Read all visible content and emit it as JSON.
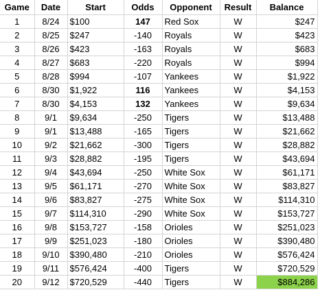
{
  "headers": [
    "Game",
    "Date",
    "Start",
    "Odds",
    "Opponent",
    "Result",
    "Balance"
  ],
  "rows": [
    {
      "game": "1",
      "date": "8/24",
      "start": "$100",
      "odds": "147",
      "odds_bold": true,
      "opponent": "Red Sox",
      "result": "W",
      "balance": "$247"
    },
    {
      "game": "2",
      "date": "8/25",
      "start": "$247",
      "odds": "-140",
      "odds_bold": false,
      "opponent": "Royals",
      "result": "W",
      "balance": "$423"
    },
    {
      "game": "3",
      "date": "8/26",
      "start": "$423",
      "odds": "-163",
      "odds_bold": false,
      "opponent": "Royals",
      "result": "W",
      "balance": "$683"
    },
    {
      "game": "4",
      "date": "8/27",
      "start": "$683",
      "odds": "-220",
      "odds_bold": false,
      "opponent": "Royals",
      "result": "W",
      "balance": "$994"
    },
    {
      "game": "5",
      "date": "8/28",
      "start": "$994",
      "odds": "-107",
      "odds_bold": false,
      "opponent": "Yankees",
      "result": "W",
      "balance": "$1,922"
    },
    {
      "game": "6",
      "date": "8/30",
      "start": "$1,922",
      "odds": "116",
      "odds_bold": true,
      "opponent": "Yankees",
      "result": "W",
      "balance": "$4,153"
    },
    {
      "game": "7",
      "date": "8/30",
      "start": "$4,153",
      "odds": "132",
      "odds_bold": true,
      "opponent": "Yankees",
      "result": "W",
      "balance": "$9,634"
    },
    {
      "game": "8",
      "date": "9/1",
      "start": "$9,634",
      "odds": "-250",
      "odds_bold": false,
      "opponent": "Tigers",
      "result": "W",
      "balance": "$13,488"
    },
    {
      "game": "9",
      "date": "9/1",
      "start": "$13,488",
      "odds": "-165",
      "odds_bold": false,
      "opponent": "Tigers",
      "result": "W",
      "balance": "$21,662"
    },
    {
      "game": "10",
      "date": "9/2",
      "start": "$21,662",
      "odds": "-300",
      "odds_bold": false,
      "opponent": "Tigers",
      "result": "W",
      "balance": "$28,882"
    },
    {
      "game": "11",
      "date": "9/3",
      "start": "$28,882",
      "odds": "-195",
      "odds_bold": false,
      "opponent": "Tigers",
      "result": "W",
      "balance": "$43,694"
    },
    {
      "game": "12",
      "date": "9/4",
      "start": "$43,694",
      "odds": "-250",
      "odds_bold": false,
      "opponent": "White Sox",
      "result": "W",
      "balance": "$61,171"
    },
    {
      "game": "13",
      "date": "9/5",
      "start": "$61,171",
      "odds": "-270",
      "odds_bold": false,
      "opponent": "White Sox",
      "result": "W",
      "balance": "$83,827"
    },
    {
      "game": "14",
      "date": "9/6",
      "start": "$83,827",
      "odds": "-275",
      "odds_bold": false,
      "opponent": "White Sox",
      "result": "W",
      "balance": "$114,310"
    },
    {
      "game": "15",
      "date": "9/7",
      "start": "$114,310",
      "odds": "-290",
      "odds_bold": false,
      "opponent": "White Sox",
      "result": "W",
      "balance": "$153,727"
    },
    {
      "game": "16",
      "date": "9/8",
      "start": "$153,727",
      "odds": "-158",
      "odds_bold": false,
      "opponent": "Orioles",
      "result": "W",
      "balance": "$251,023"
    },
    {
      "game": "17",
      "date": "9/9",
      "start": "$251,023",
      "odds": "-180",
      "odds_bold": false,
      "opponent": "Orioles",
      "result": "W",
      "balance": "$390,480"
    },
    {
      "game": "18",
      "date": "9/10",
      "start": "$390,480",
      "odds": "-210",
      "odds_bold": false,
      "opponent": "Orioles",
      "result": "W",
      "balance": "$576,424"
    },
    {
      "game": "19",
      "date": "9/11",
      "start": "$576,424",
      "odds": "-400",
      "odds_bold": false,
      "opponent": "Tigers",
      "result": "W",
      "balance": "$720,529"
    },
    {
      "game": "20",
      "date": "9/12",
      "start": "$720,529",
      "odds": "-440",
      "odds_bold": false,
      "opponent": "Tigers",
      "result": "W",
      "balance": "$884,286",
      "balance_highlight": true
    }
  ],
  "colors": {
    "highlight": "#8cd24a",
    "gridline": "#d4d4d4"
  }
}
